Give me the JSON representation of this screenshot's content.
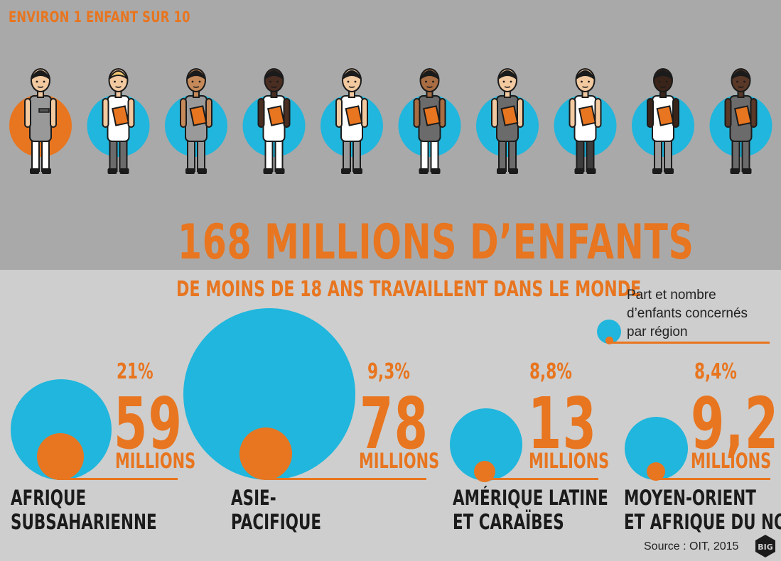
{
  "header": {
    "top_label": "ENVIRON 1 ENFANT SUR 10",
    "headline": "168 MILLIONS D’ENFANTS",
    "subheadline": "DE MOINS DE 18 ANS TRAVAILLENT DANS LE MONDE"
  },
  "legend": {
    "line1": "Part et nombre",
    "line2": "d’enfants concernés",
    "line3": "par région"
  },
  "source": "Source : OIT, 2015",
  "logo_text": "BIG",
  "colors": {
    "orange": "#e8751f",
    "blue": "#20b6dd",
    "dark_band": "#a9a9a9",
    "light_band": "#cecece"
  },
  "people": {
    "count": 10,
    "highlighted_index": 0
  },
  "chart_data": {
    "type": "bubble",
    "unit_label": "MILLIONS",
    "regions": [
      {
        "name_line1": "AFRIQUE",
        "name_line2": "SUBSAHARIENNE",
        "share_label": "21%",
        "share": 21,
        "value_label": "59",
        "value": 59
      },
      {
        "name_line1": "ASIE-",
        "name_line2": "PACIFIQUE",
        "share_label": "9,3%",
        "share": 9.3,
        "value_label": "78",
        "value": 78
      },
      {
        "name_line1": "AMÉRIQUE LATINE",
        "name_line2": "ET CARAÏBES",
        "share_label": "8,8%",
        "share": 8.8,
        "value_label": "13",
        "value": 13
      },
      {
        "name_line1": "MOYEN-ORIENT",
        "name_line2": "ET AFRIQUE DU NORD",
        "share_label": "8,4%",
        "share": 8.4,
        "value_label": "9,2",
        "value": 9.2
      }
    ]
  }
}
